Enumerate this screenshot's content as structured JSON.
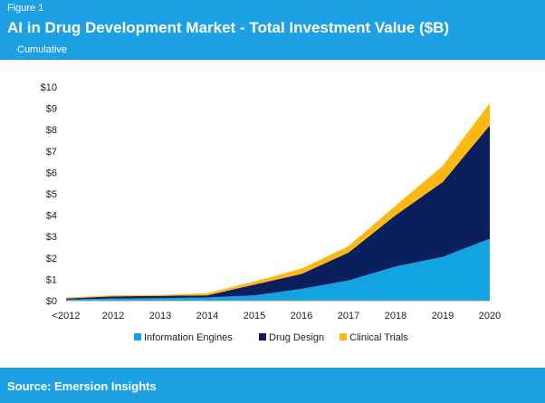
{
  "header": {
    "figure_label": "Figure 1",
    "title": "AI in Drug Development Market - Total Investment Value ($B)",
    "subtitle": "Cumulative"
  },
  "footer": {
    "source": "Source: Emersion Insights"
  },
  "colors": {
    "brand_blue": "#1da1e4",
    "information_engines": "#12a3e3",
    "drug_design": "#0b1f5c",
    "clinical_trials": "#fdb813"
  },
  "chart_data": {
    "type": "area",
    "stacked": true,
    "x": [
      "<2012",
      "2012",
      "2013",
      "2014",
      "2015",
      "2016",
      "2017",
      "2018",
      "2019",
      "2020"
    ],
    "series": [
      {
        "name": "Information Engines",
        "color": "#12a3e3",
        "values": [
          0.05,
          0.1,
          0.12,
          0.15,
          0.25,
          0.55,
          0.95,
          1.6,
          2.05,
          2.9
        ]
      },
      {
        "name": "Drug Design",
        "color": "#0b1f5c",
        "values": [
          0.05,
          0.1,
          0.1,
          0.1,
          0.5,
          0.7,
          1.3,
          2.4,
          3.5,
          5.3
        ]
      },
      {
        "name": "Clinical Trials",
        "color": "#fdb813",
        "values": [
          0.05,
          0.05,
          0.05,
          0.1,
          0.15,
          0.25,
          0.3,
          0.45,
          0.75,
          1.05
        ]
      }
    ],
    "y_ticks": [
      "$0",
      "$1",
      "$2",
      "$3",
      "$4",
      "$5",
      "$6",
      "$7",
      "$8",
      "$9",
      "$10"
    ],
    "ylim": [
      0,
      10
    ],
    "legend_position": "bottom"
  }
}
